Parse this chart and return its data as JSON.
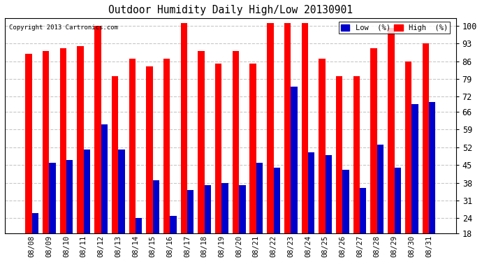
{
  "title": "Outdoor Humidity Daily High/Low 20130901",
  "copyright": "Copyright 2013 Cartronics.com",
  "dates": [
    "08/08",
    "08/09",
    "08/10",
    "08/11",
    "08/12",
    "08/13",
    "08/14",
    "08/15",
    "08/16",
    "08/17",
    "08/18",
    "08/19",
    "08/20",
    "08/21",
    "08/22",
    "08/23",
    "08/24",
    "08/25",
    "08/26",
    "08/27",
    "08/28",
    "08/29",
    "08/30",
    "08/31"
  ],
  "high": [
    89,
    90,
    91,
    92,
    100,
    80,
    87,
    84,
    87,
    101,
    90,
    85,
    90,
    85,
    101,
    101,
    101,
    87,
    80,
    80,
    91,
    99,
    86,
    93
  ],
  "low": [
    26,
    46,
    47,
    51,
    61,
    51,
    24,
    39,
    25,
    35,
    37,
    38,
    37,
    46,
    44,
    76,
    50,
    49,
    43,
    36,
    53,
    44,
    69,
    70
  ],
  "high_color": "#ff0000",
  "low_color": "#0000cc",
  "bg_color": "#ffffff",
  "grid_color": "#c8c8c8",
  "yticks": [
    18,
    24,
    31,
    38,
    45,
    52,
    59,
    66,
    72,
    79,
    86,
    93,
    100
  ],
  "ylim": [
    18,
    103
  ],
  "bar_width": 0.38,
  "legend_low_label": "Low  (%)",
  "legend_high_label": "High  (%)"
}
